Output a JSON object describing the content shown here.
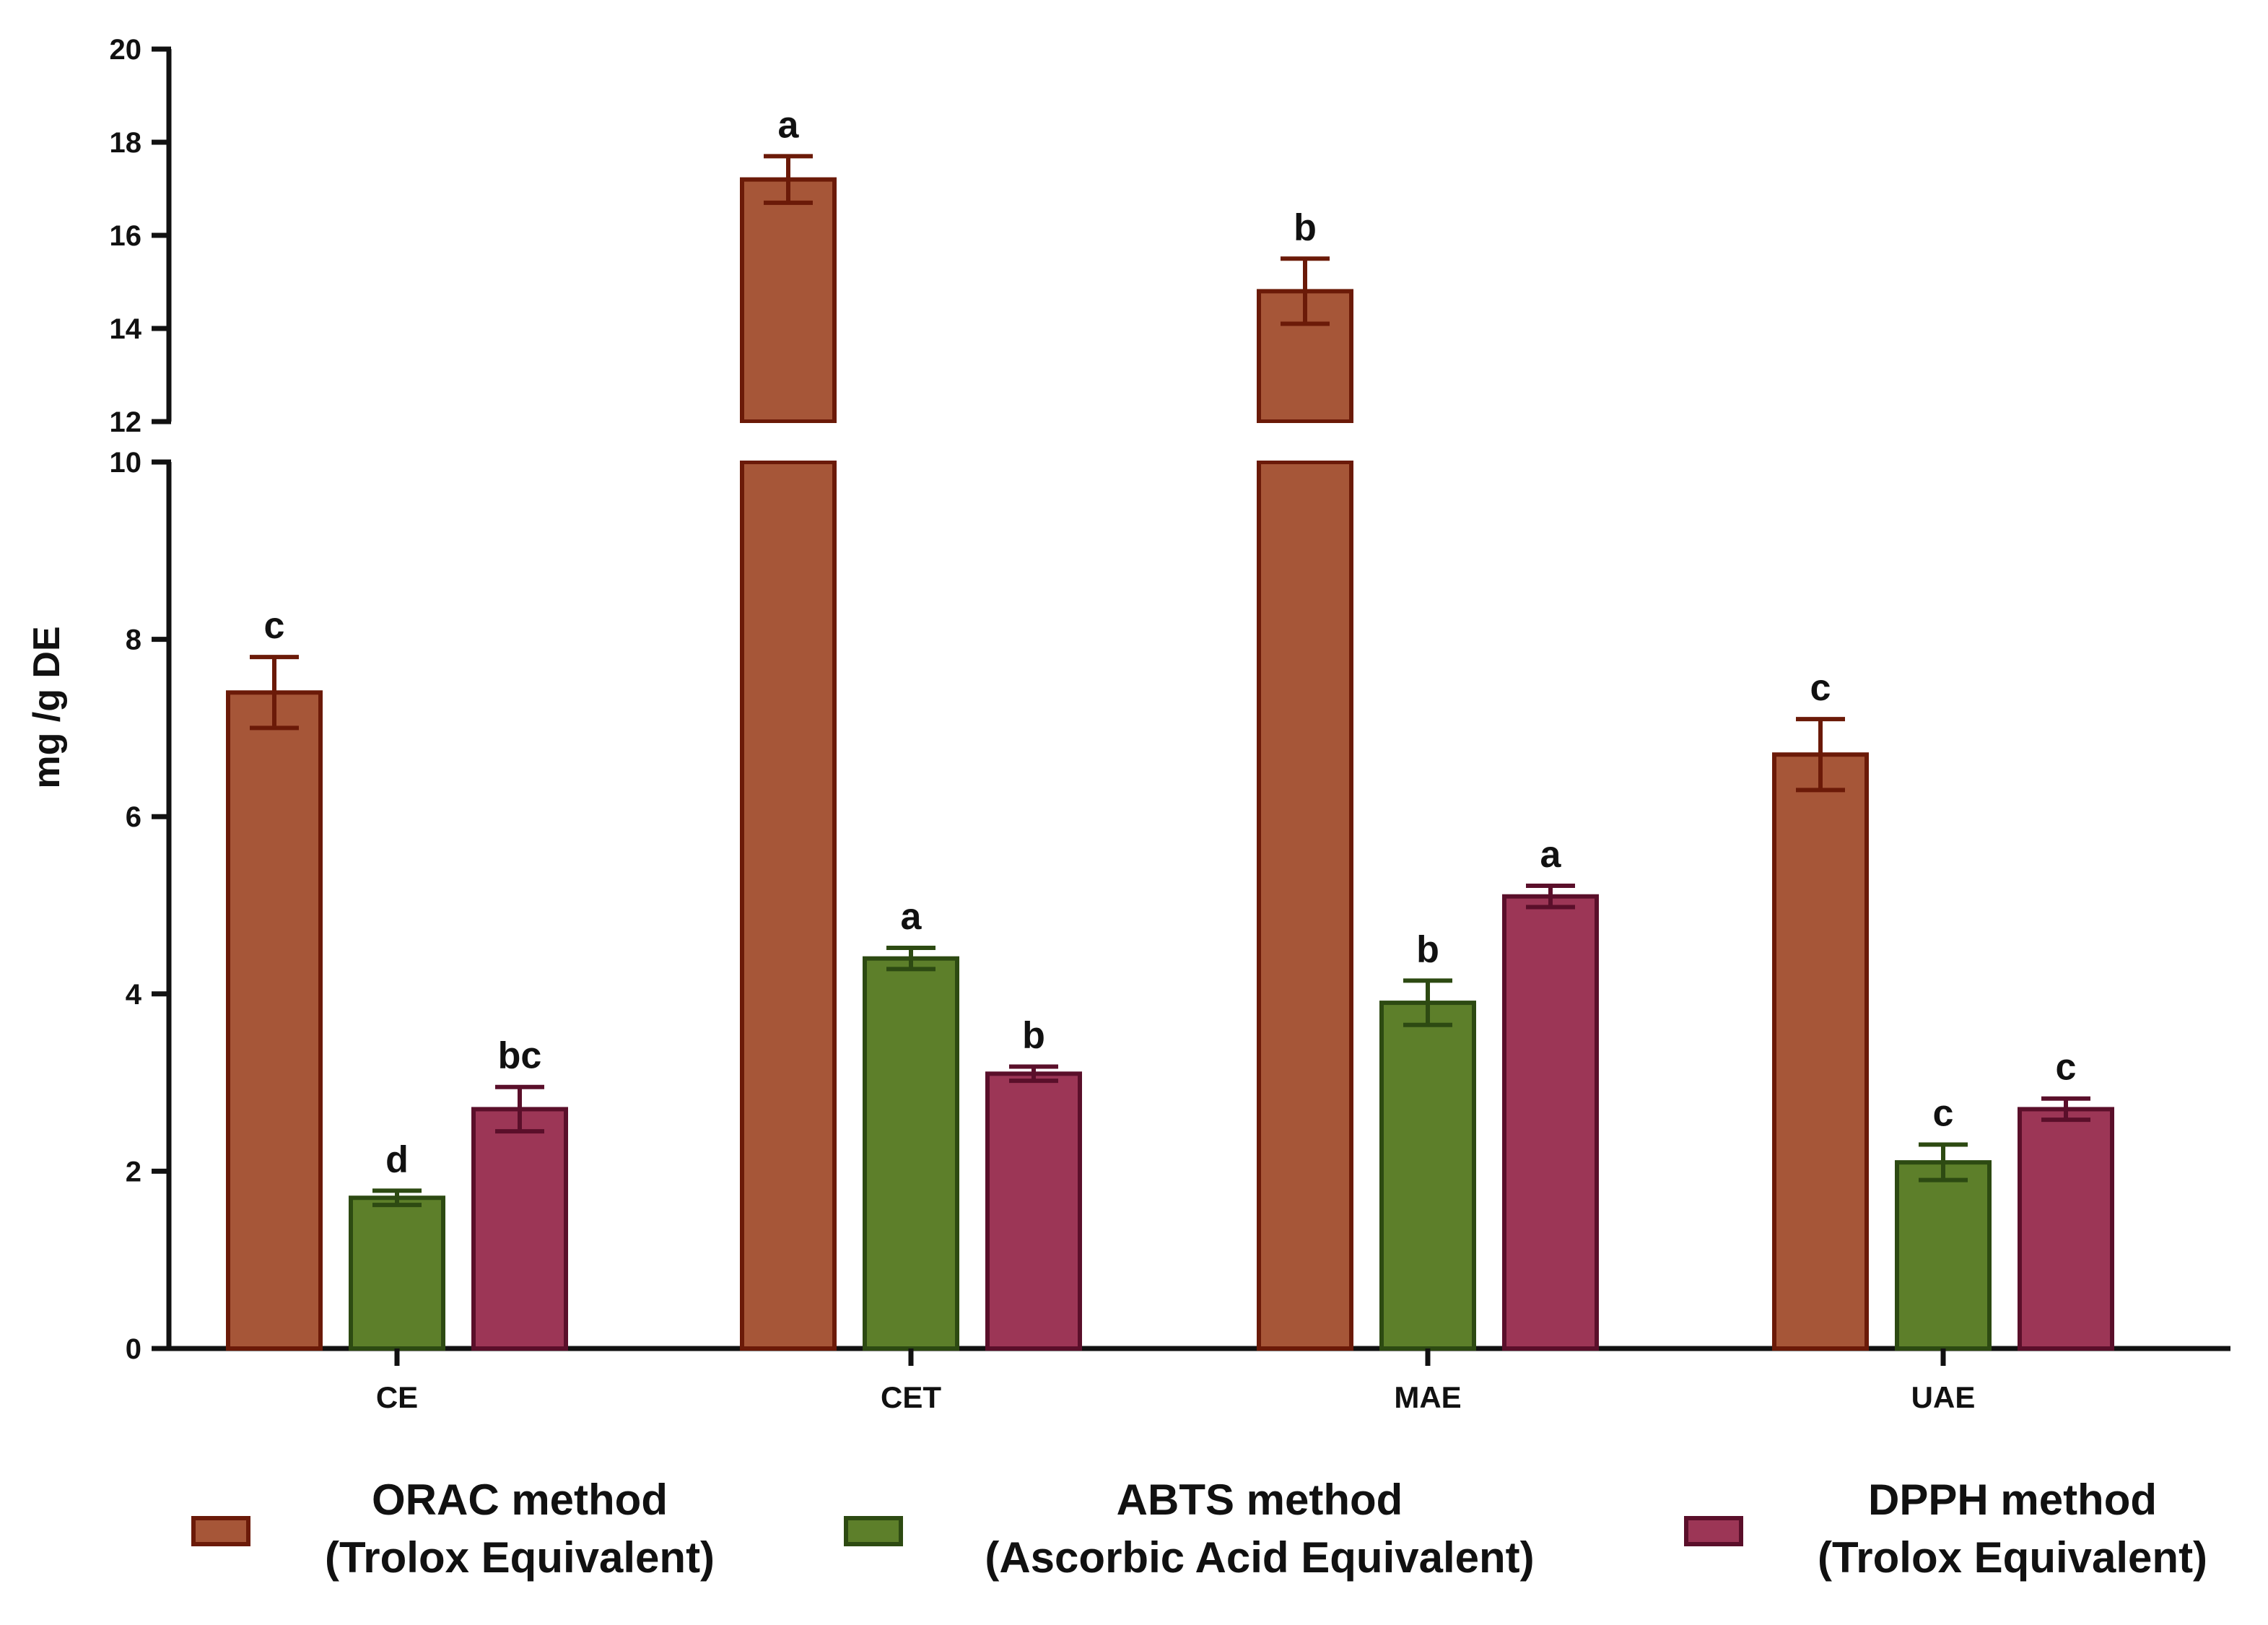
{
  "chart_data": {
    "type": "bar",
    "ylabel": "mg /g DE",
    "xlabel": "",
    "categories": [
      "CE",
      "CET",
      "MAE",
      "UAE"
    ],
    "ylim": [
      0,
      20
    ],
    "y_break": [
      10,
      12
    ],
    "yticks_lower": [
      0,
      2,
      4,
      6,
      8,
      10
    ],
    "yticks_upper": [
      12,
      14,
      16,
      18,
      20
    ],
    "series": [
      {
        "name": "ORAC method (Trolox Equivalent)",
        "legend_line1": "ORAC method",
        "legend_line2": "(Trolox Equivalent)",
        "fill": "#a65638",
        "stroke": "#6b1a08",
        "values": [
          7.4,
          17.2,
          14.8,
          6.7
        ],
        "errors": [
          0.4,
          0.5,
          0.7,
          0.4
        ],
        "significance": [
          "c",
          "a",
          "b",
          "c"
        ]
      },
      {
        "name": "ABTS method (Ascorbic Acid Equivalent)",
        "legend_line1": "ABTS method",
        "legend_line2": "(Ascorbic Acid Equivalent)",
        "fill": "#5d7f2a",
        "stroke": "#2d4a12",
        "values": [
          1.7,
          4.4,
          3.9,
          2.1
        ],
        "errors": [
          0.08,
          0.12,
          0.25,
          0.2
        ],
        "significance": [
          "d",
          "a",
          "b",
          "c"
        ]
      },
      {
        "name": "DPPH method (Trolox Equivalent)",
        "legend_line1": "DPPH method",
        "legend_line2": "(Trolox Equivalent)",
        "fill": "#9c3656",
        "stroke": "#5a0f2a",
        "values": [
          2.7,
          3.1,
          5.1,
          2.7
        ],
        "errors": [
          0.25,
          0.08,
          0.12,
          0.12
        ],
        "significance": [
          "bc",
          "b",
          "a",
          "c"
        ]
      }
    ],
    "legend_position": "bottom"
  }
}
